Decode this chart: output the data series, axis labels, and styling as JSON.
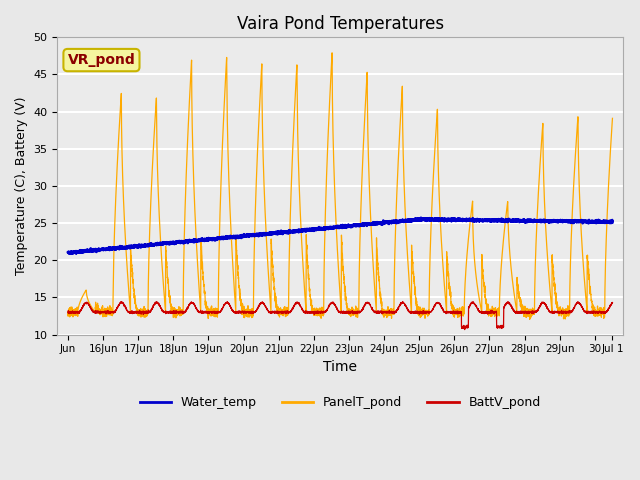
{
  "title": "Vaira Pond Temperatures",
  "xlabel": "Time",
  "ylabel": "Temperature (C), Battery (V)",
  "ylim": [
    10,
    50
  ],
  "xlim": [
    -0.3,
    15.8
  ],
  "background_color": "#e8e8e8",
  "plot_bg_color": "#ebebeb",
  "annotation_text": "VR_pond",
  "annotation_color": "#8b0000",
  "annotation_bg": "#f5f5a0",
  "annotation_border": "#c8b400",
  "water_color": "#0000cc",
  "panel_color": "#ffaa00",
  "batt_color": "#cc0000",
  "xtick_labels": [
    "Jun",
    "16Jun",
    "17Jun",
    "18Jun",
    "19Jun",
    "20Jun",
    "21Jun",
    "22Jun",
    "23Jun",
    "24Jun",
    "25Jun",
    "26Jun",
    "27Jun",
    "28Jun",
    "29Jun",
    "30",
    "Jul 1"
  ],
  "xtick_positions": [
    0,
    1,
    2,
    3,
    4,
    5,
    6,
    7,
    8,
    9,
    10,
    11,
    12,
    13,
    14,
    15,
    15.5
  ],
  "ytick_positions": [
    10,
    15,
    20,
    25,
    30,
    35,
    40,
    45,
    50
  ],
  "legend_labels": [
    "Water_temp",
    "PanelT_pond",
    "BattV_pond"
  ],
  "figsize": [
    6.4,
    4.8
  ],
  "dpi": 100
}
